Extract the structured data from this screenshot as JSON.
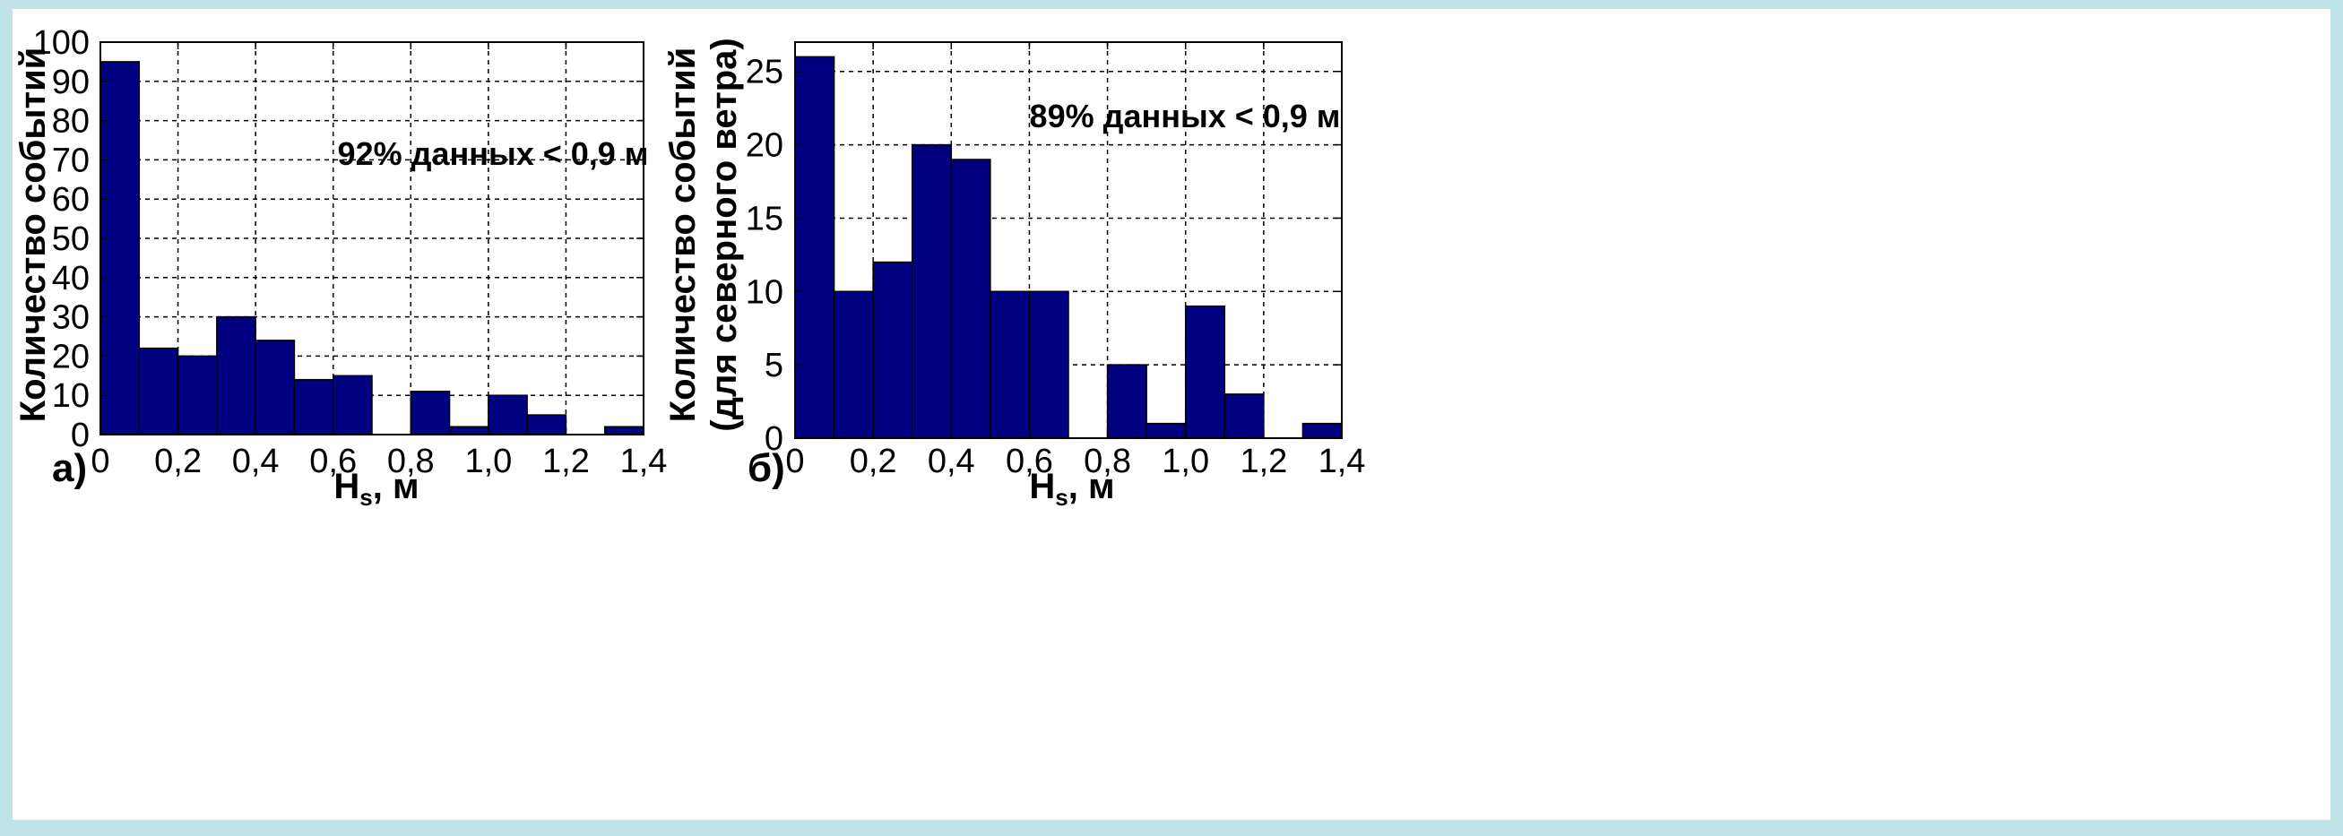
{
  "colors": {
    "background": "#bfe3e6",
    "panel": "#ffffff",
    "bar_fill": "#000080",
    "bar_edge": "#000000",
    "grid": "#000000",
    "text": "#000000"
  },
  "chart_data": [
    {
      "type": "bar",
      "panel_label": "а)",
      "bin_edges": [
        0,
        0.1,
        0.2,
        0.3,
        0.4,
        0.5,
        0.6,
        0.7,
        0.8,
        0.9,
        1.0,
        1.1,
        1.2,
        1.3,
        1.4
      ],
      "values": [
        95,
        22,
        20,
        30,
        24,
        14,
        15,
        0,
        11,
        2,
        10,
        5,
        0,
        2
      ],
      "xticks": [
        "0",
        "0,2",
        "0,4",
        "0,6",
        "0,8",
        "1,0",
        "1,2",
        "1,4"
      ],
      "yticks": [
        "0",
        "10",
        "20",
        "30",
        "40",
        "50",
        "60",
        "70",
        "80",
        "90",
        "100"
      ],
      "xlim": [
        0,
        1.4
      ],
      "ylim": [
        0,
        100
      ],
      "xlabel_main": "H",
      "xlabel_sub": "s",
      "xlabel_tail": ", м",
      "ylabel_lines": [
        "Количество событий"
      ],
      "annotation": "92% данных < 0,9 м",
      "grid": true
    },
    {
      "type": "bar",
      "panel_label": "б)",
      "bin_edges": [
        0,
        0.1,
        0.2,
        0.3,
        0.4,
        0.5,
        0.6,
        0.7,
        0.8,
        0.9,
        1.0,
        1.1,
        1.2,
        1.3,
        1.4
      ],
      "values": [
        26,
        10,
        12,
        20,
        19,
        10,
        10,
        0,
        5,
        1,
        9,
        3,
        0,
        1
      ],
      "xticks": [
        "0",
        "0,2",
        "0,4",
        "0,6",
        "0,8",
        "1,0",
        "1,2",
        "1,4"
      ],
      "yticks": [
        "0",
        "5",
        "10",
        "15",
        "20",
        "25"
      ],
      "xlim": [
        0,
        1.4
      ],
      "ylim": [
        0,
        27
      ],
      "xlabel_main": "H",
      "xlabel_sub": "s",
      "xlabel_tail": ", м",
      "ylabel_lines": [
        "Количество событий",
        "(для северного ветра)"
      ],
      "annotation": "89% данных < 0,9 м",
      "grid": true
    }
  ]
}
